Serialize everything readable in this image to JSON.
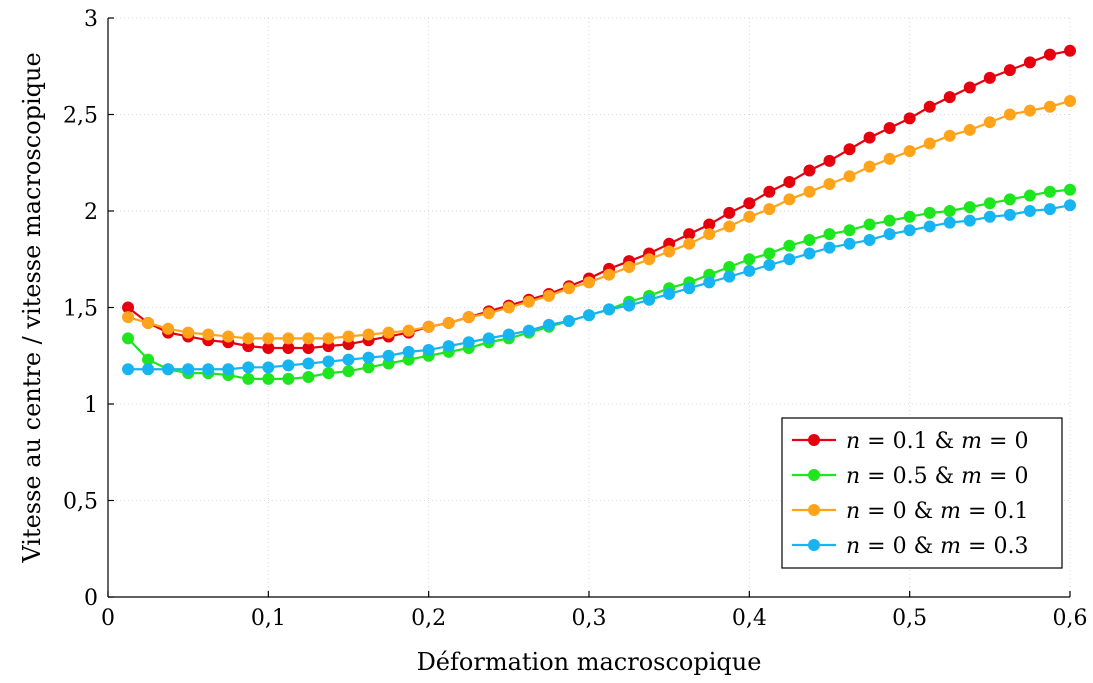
{
  "chart_data": {
    "type": "line",
    "xlabel": "Déformation macroscopique",
    "ylabel": "Vitesse au centre / vitesse macroscopique",
    "xlim": [
      0,
      0.6
    ],
    "ylim": [
      0,
      3
    ],
    "x_ticks": [
      "0",
      "0,1",
      "0,2",
      "0,3",
      "0,4",
      "0,5",
      "0,6"
    ],
    "y_ticks": [
      "0",
      "0,5",
      "1",
      "1,5",
      "2",
      "2,5",
      "3"
    ],
    "x_tick_values": [
      0,
      0.1,
      0.2,
      0.3,
      0.4,
      0.5,
      0.6
    ],
    "y_tick_values": [
      0,
      0.5,
      1,
      1.5,
      2,
      2.5,
      3
    ],
    "grid": true,
    "legend_position": "bottom-right",
    "x": [
      0.0125,
      0.025,
      0.0375,
      0.05,
      0.0625,
      0.075,
      0.0875,
      0.1,
      0.1125,
      0.125,
      0.1375,
      0.15,
      0.1625,
      0.175,
      0.1875,
      0.2,
      0.2125,
      0.225,
      0.2375,
      0.25,
      0.2625,
      0.275,
      0.2875,
      0.3,
      0.3125,
      0.325,
      0.3375,
      0.35,
      0.3625,
      0.375,
      0.3875,
      0.4,
      0.4125,
      0.425,
      0.4375,
      0.45,
      0.4625,
      0.475,
      0.4875,
      0.5,
      0.5125,
      0.525,
      0.5375,
      0.55,
      0.5625,
      0.575,
      0.5875,
      0.6
    ],
    "series": [
      {
        "name": "n = 0.1 & m = 0",
        "legend": {
          "v1": "n",
          "t1": " = 0.1 & ",
          "v2": "m",
          "t2": " = 0"
        },
        "color": "#e6000f",
        "values": [
          1.5,
          1.42,
          1.37,
          1.35,
          1.33,
          1.32,
          1.3,
          1.29,
          1.29,
          1.29,
          1.3,
          1.31,
          1.33,
          1.35,
          1.37,
          1.4,
          1.42,
          1.45,
          1.48,
          1.51,
          1.54,
          1.57,
          1.61,
          1.65,
          1.7,
          1.74,
          1.78,
          1.83,
          1.88,
          1.93,
          1.99,
          2.04,
          2.1,
          2.15,
          2.21,
          2.26,
          2.32,
          2.38,
          2.43,
          2.48,
          2.54,
          2.59,
          2.64,
          2.69,
          2.73,
          2.77,
          2.81,
          2.83
        ]
      },
      {
        "name": "n = 0.5 & m = 0",
        "legend": {
          "v1": "n",
          "t1": " = 0.5 & ",
          "v2": "m",
          "t2": " = 0"
        },
        "color": "#1ee61e",
        "values": [
          1.34,
          1.23,
          1.18,
          1.16,
          1.16,
          1.15,
          1.13,
          1.13,
          1.13,
          1.14,
          1.16,
          1.17,
          1.19,
          1.21,
          1.23,
          1.25,
          1.27,
          1.29,
          1.32,
          1.34,
          1.37,
          1.4,
          1.43,
          1.46,
          1.49,
          1.53,
          1.56,
          1.6,
          1.63,
          1.67,
          1.71,
          1.75,
          1.78,
          1.82,
          1.85,
          1.88,
          1.9,
          1.93,
          1.95,
          1.97,
          1.99,
          2.0,
          2.02,
          2.04,
          2.06,
          2.08,
          2.1,
          2.11
        ]
      },
      {
        "name": "n = 0 & m = 0.1",
        "legend": {
          "v1": "n",
          "t1": " = 0 & ",
          "v2": "m",
          "t2": " = 0.1"
        },
        "color": "#ffa31a",
        "values": [
          1.45,
          1.42,
          1.39,
          1.37,
          1.36,
          1.35,
          1.34,
          1.34,
          1.34,
          1.34,
          1.34,
          1.35,
          1.36,
          1.37,
          1.38,
          1.4,
          1.42,
          1.45,
          1.47,
          1.5,
          1.53,
          1.56,
          1.6,
          1.63,
          1.67,
          1.71,
          1.75,
          1.79,
          1.83,
          1.88,
          1.92,
          1.97,
          2.01,
          2.06,
          2.1,
          2.14,
          2.18,
          2.23,
          2.27,
          2.31,
          2.35,
          2.39,
          2.42,
          2.46,
          2.5,
          2.52,
          2.54,
          2.57
        ]
      },
      {
        "name": "n = 0 & m = 0.3",
        "legend": {
          "v1": "n",
          "t1": " = 0 & ",
          "v2": "m",
          "t2": " = 0.3"
        },
        "color": "#16b4f0",
        "values": [
          1.18,
          1.18,
          1.18,
          1.18,
          1.18,
          1.18,
          1.19,
          1.19,
          1.2,
          1.21,
          1.22,
          1.23,
          1.24,
          1.25,
          1.27,
          1.28,
          1.3,
          1.32,
          1.34,
          1.36,
          1.38,
          1.41,
          1.43,
          1.46,
          1.49,
          1.51,
          1.54,
          1.57,
          1.6,
          1.63,
          1.66,
          1.69,
          1.72,
          1.75,
          1.78,
          1.81,
          1.83,
          1.85,
          1.88,
          1.9,
          1.92,
          1.94,
          1.95,
          1.97,
          1.98,
          2.0,
          2.01,
          2.03
        ]
      }
    ]
  }
}
